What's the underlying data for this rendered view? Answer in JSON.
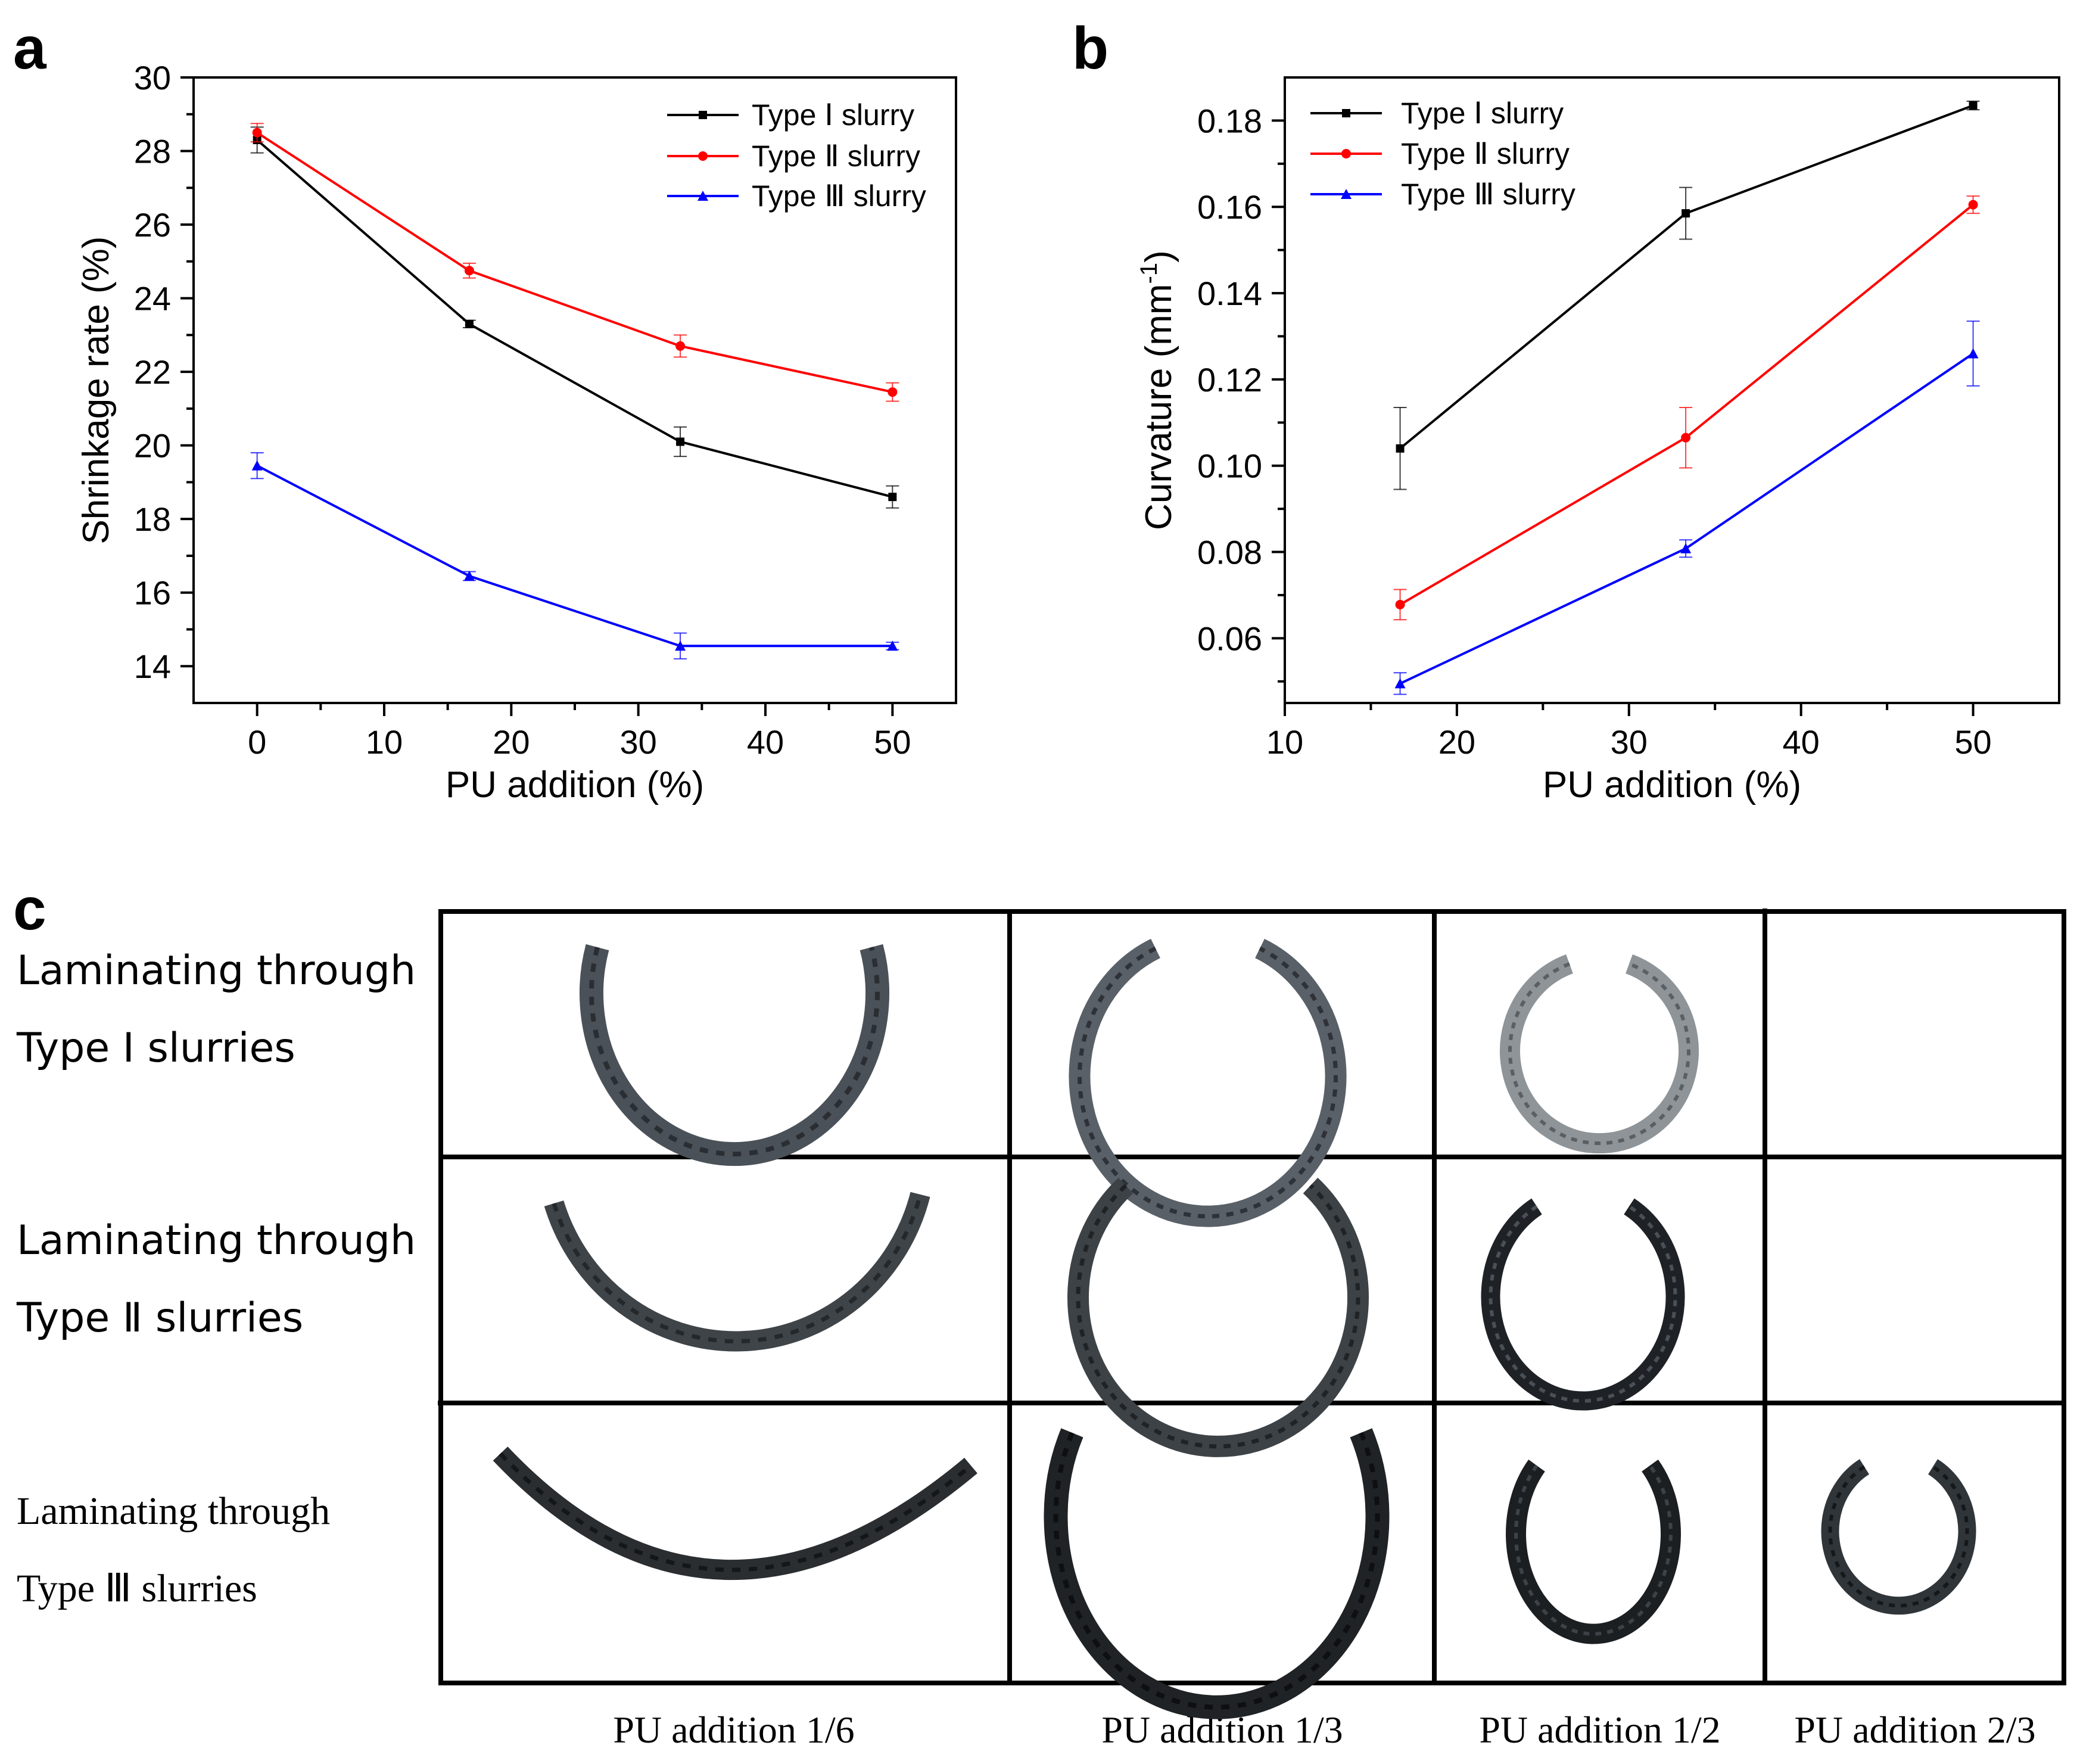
{
  "chart_data": [
    {
      "panel": "a",
      "type": "line",
      "xlabel": "PU addition (%)",
      "ylabel": "Shrinkage rate (%)",
      "xlim": [
        -5,
        55
      ],
      "ylim": [
        13,
        30
      ],
      "xticks": [
        0,
        10,
        20,
        30,
        40,
        50
      ],
      "yticks": [
        14,
        16,
        18,
        20,
        22,
        24,
        26,
        28,
        30
      ],
      "legend_position": "top-right",
      "x": [
        0,
        16.7,
        33.3,
        50
      ],
      "series": [
        {
          "name": "Type Ⅰ   slurry",
          "color": "#000000",
          "marker": "square",
          "values": [
            28.3,
            23.3,
            20.1,
            18.6
          ],
          "errors": [
            0.35,
            0.1,
            0.4,
            0.3
          ]
        },
        {
          "name": "Type Ⅱ  slurry",
          "color": "#ff0000",
          "marker": "circle",
          "values": [
            28.5,
            24.75,
            22.7,
            21.45
          ],
          "errors": [
            0.25,
            0.2,
            0.3,
            0.25
          ]
        },
        {
          "name": "Type Ⅲ slurry",
          "color": "#0000ff",
          "marker": "triangle",
          "values": [
            19.45,
            16.45,
            14.55,
            14.55
          ],
          "errors": [
            0.35,
            0.12,
            0.35,
            0.1
          ]
        }
      ]
    },
    {
      "panel": "b",
      "type": "line",
      "xlabel": "PU addition (%)",
      "ylabel_main": "Curvature (mm",
      "ylabel_sup": "-1",
      "ylabel_end": ")",
      "xlim": [
        10,
        55
      ],
      "ylim": [
        0.045,
        0.19
      ],
      "xticks": [
        10,
        20,
        30,
        40,
        50
      ],
      "yticks": [
        0.06,
        0.08,
        0.1,
        0.12,
        0.14,
        0.16,
        0.18
      ],
      "ytick_labels": [
        "0.06",
        "0.08",
        "0.10",
        "0.12",
        "0.14",
        "0.16",
        "0.18"
      ],
      "legend_position": "top-left",
      "x": [
        16.7,
        33.3,
        50
      ],
      "series": [
        {
          "name": "Type Ⅰ   slurry",
          "color": "#000000",
          "marker": "square",
          "values": [
            0.104,
            0.1585,
            0.1835
          ],
          "errors": [
            0.0095,
            0.006,
            0.001
          ]
        },
        {
          "name": "Type Ⅱ  slurry",
          "color": "#ff0000",
          "marker": "circle",
          "values": [
            0.0678,
            0.1065,
            0.1605
          ],
          "errors": [
            0.0035,
            0.007,
            0.002
          ]
        },
        {
          "name": "Type Ⅲ slurry",
          "color": "#0000ff",
          "marker": "triangle",
          "values": [
            0.0495,
            0.0808,
            0.126
          ],
          "errors": [
            0.0025,
            0.002,
            0.0075
          ]
        }
      ]
    }
  ],
  "panel_labels": {
    "a": "a",
    "b": "b",
    "c": "c"
  },
  "grid_panel": {
    "row_labels": [
      {
        "line1": "Laminating through",
        "line2": "Type  Ⅰ  slurries"
      },
      {
        "line1": "Laminating through",
        "line2": "Type  Ⅱ  slurries"
      },
      {
        "line1": "Laminating through",
        "line2": "Type Ⅲ slurries"
      }
    ],
    "column_labels": [
      "PU addition 1/6",
      "PU addition 1/3",
      "PU addition 1/2",
      "PU addition 2/3"
    ]
  }
}
